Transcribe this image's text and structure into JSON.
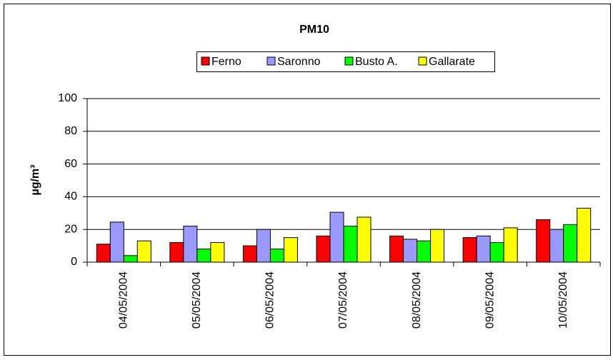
{
  "chart_data": {
    "type": "bar",
    "title": "PM10",
    "y_label": "µg/m³",
    "categories": [
      "04/05/2004",
      "05/05/2004",
      "06/05/2004",
      "07/05/2004",
      "08/05/2004",
      "09/05/2004",
      "10/05/2004"
    ],
    "series": [
      {
        "name": "Ferno",
        "color": "#ff0000",
        "values": [
          11,
          12,
          10,
          16,
          16,
          15,
          26
        ]
      },
      {
        "name": "Saronno",
        "color": "#9999ff",
        "values": [
          24.5,
          22,
          20,
          30.5,
          14,
          16,
          20
        ]
      },
      {
        "name": "Busto A.",
        "color": "#00ff00",
        "values": [
          4,
          8,
          8,
          22,
          13,
          12,
          23
        ]
      },
      {
        "name": "Gallarate",
        "color": "#ffff00",
        "values": [
          13,
          12,
          15,
          27.5,
          20,
          21,
          33
        ]
      }
    ],
    "ylim": [
      0,
      100
    ],
    "yticks": [
      0,
      20,
      40,
      60,
      80,
      100
    ],
    "grid": true,
    "legend": "top"
  }
}
